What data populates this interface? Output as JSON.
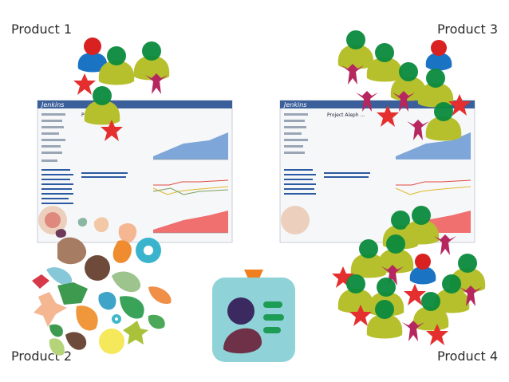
{
  "labels": {
    "product_1": "Product 1",
    "product_2": "Product 2",
    "product_3": "Product 3",
    "product_4": "Product 4"
  },
  "screens": [
    {
      "brand": "Jenkins",
      "title": "Project"
    },
    {
      "brand": "Jenkins",
      "title": "Project Aleph ..."
    }
  ],
  "colors": {
    "person_body": "#b6c02c",
    "person_head": "#0b8a3d",
    "blue_body": "#1b73c4",
    "red_head": "#d92121",
    "star_red": "#e52f2f",
    "magenta_figure": "#b5275e",
    "chart_area_blue": "#7ea6d9",
    "chart_area_red": "#f07070",
    "badge_bg": "#8fd2d8",
    "badge_stripe": "#1c9c55",
    "badge_tab": "#f07f20"
  },
  "icons": [
    "person-icon",
    "star-icon",
    "people-group-icon",
    "blob-icon",
    "id-badge-icon",
    "jenkins-logo-icon",
    "line-chart-icon",
    "area-chart-icon"
  ]
}
